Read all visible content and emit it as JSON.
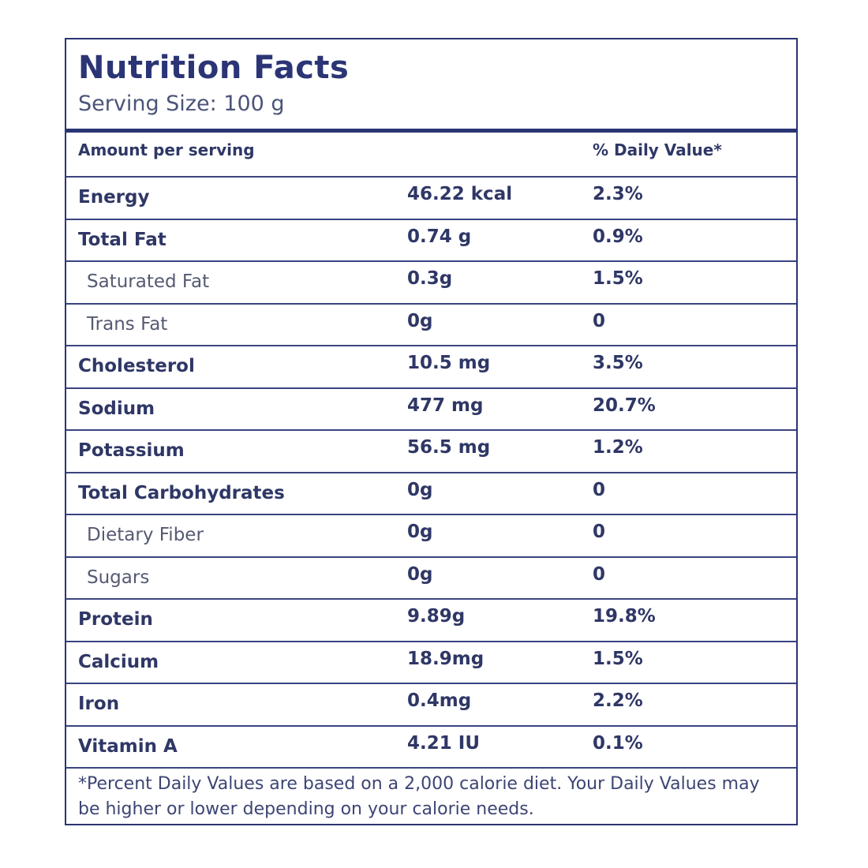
{
  "label": {
    "title": "Nutrition Facts",
    "serving_size": "Serving Size: 100 g",
    "columns": {
      "amount_header": "Amount per serving",
      "dv_header": "% Daily Value*"
    },
    "rows": [
      {
        "name": "Energy",
        "amount": "46.22 kcal",
        "dv": "2.3%",
        "sub": false
      },
      {
        "name": "Total Fat",
        "amount": "0.74 g",
        "dv": "0.9%",
        "sub": false
      },
      {
        "name": "Saturated Fat",
        "amount": "0.3g",
        "dv": "1.5%",
        "sub": true
      },
      {
        "name": "Trans Fat",
        "amount": "0g",
        "dv": "0",
        "sub": true
      },
      {
        "name": "Cholesterol",
        "amount": "10.5 mg",
        "dv": "3.5%",
        "sub": false
      },
      {
        "name": "Sodium",
        "amount": "477 mg",
        "dv": "20.7%",
        "sub": false
      },
      {
        "name": "Potassium",
        "amount": "56.5 mg",
        "dv": "1.2%",
        "sub": false
      },
      {
        "name": "Total Carbohydrates",
        "amount": "0g",
        "dv": "0",
        "sub": false
      },
      {
        "name": "Dietary Fiber",
        "amount": "0g",
        "dv": "0",
        "sub": true
      },
      {
        "name": "Sugars",
        "amount": "0g",
        "dv": "0",
        "sub": true
      },
      {
        "name": "Protein",
        "amount": "9.89g",
        "dv": "19.8%",
        "sub": false
      },
      {
        "name": "Calcium",
        "amount": "18.9mg",
        "dv": "1.5%",
        "sub": false
      },
      {
        "name": "Iron",
        "amount": "0.4mg",
        "dv": "2.2%",
        "sub": false
      },
      {
        "name": "Vitamin A",
        "amount": "4.21 IU",
        "dv": "0.1%",
        "sub": false
      }
    ],
    "footnote": "*Percent Daily Values are based on a 2,000 calorie diet. Your Daily Values may be higher or lower depending on your calorie needs.",
    "colors": {
      "ink": "#2a3573",
      "background": "#ffffff"
    }
  }
}
